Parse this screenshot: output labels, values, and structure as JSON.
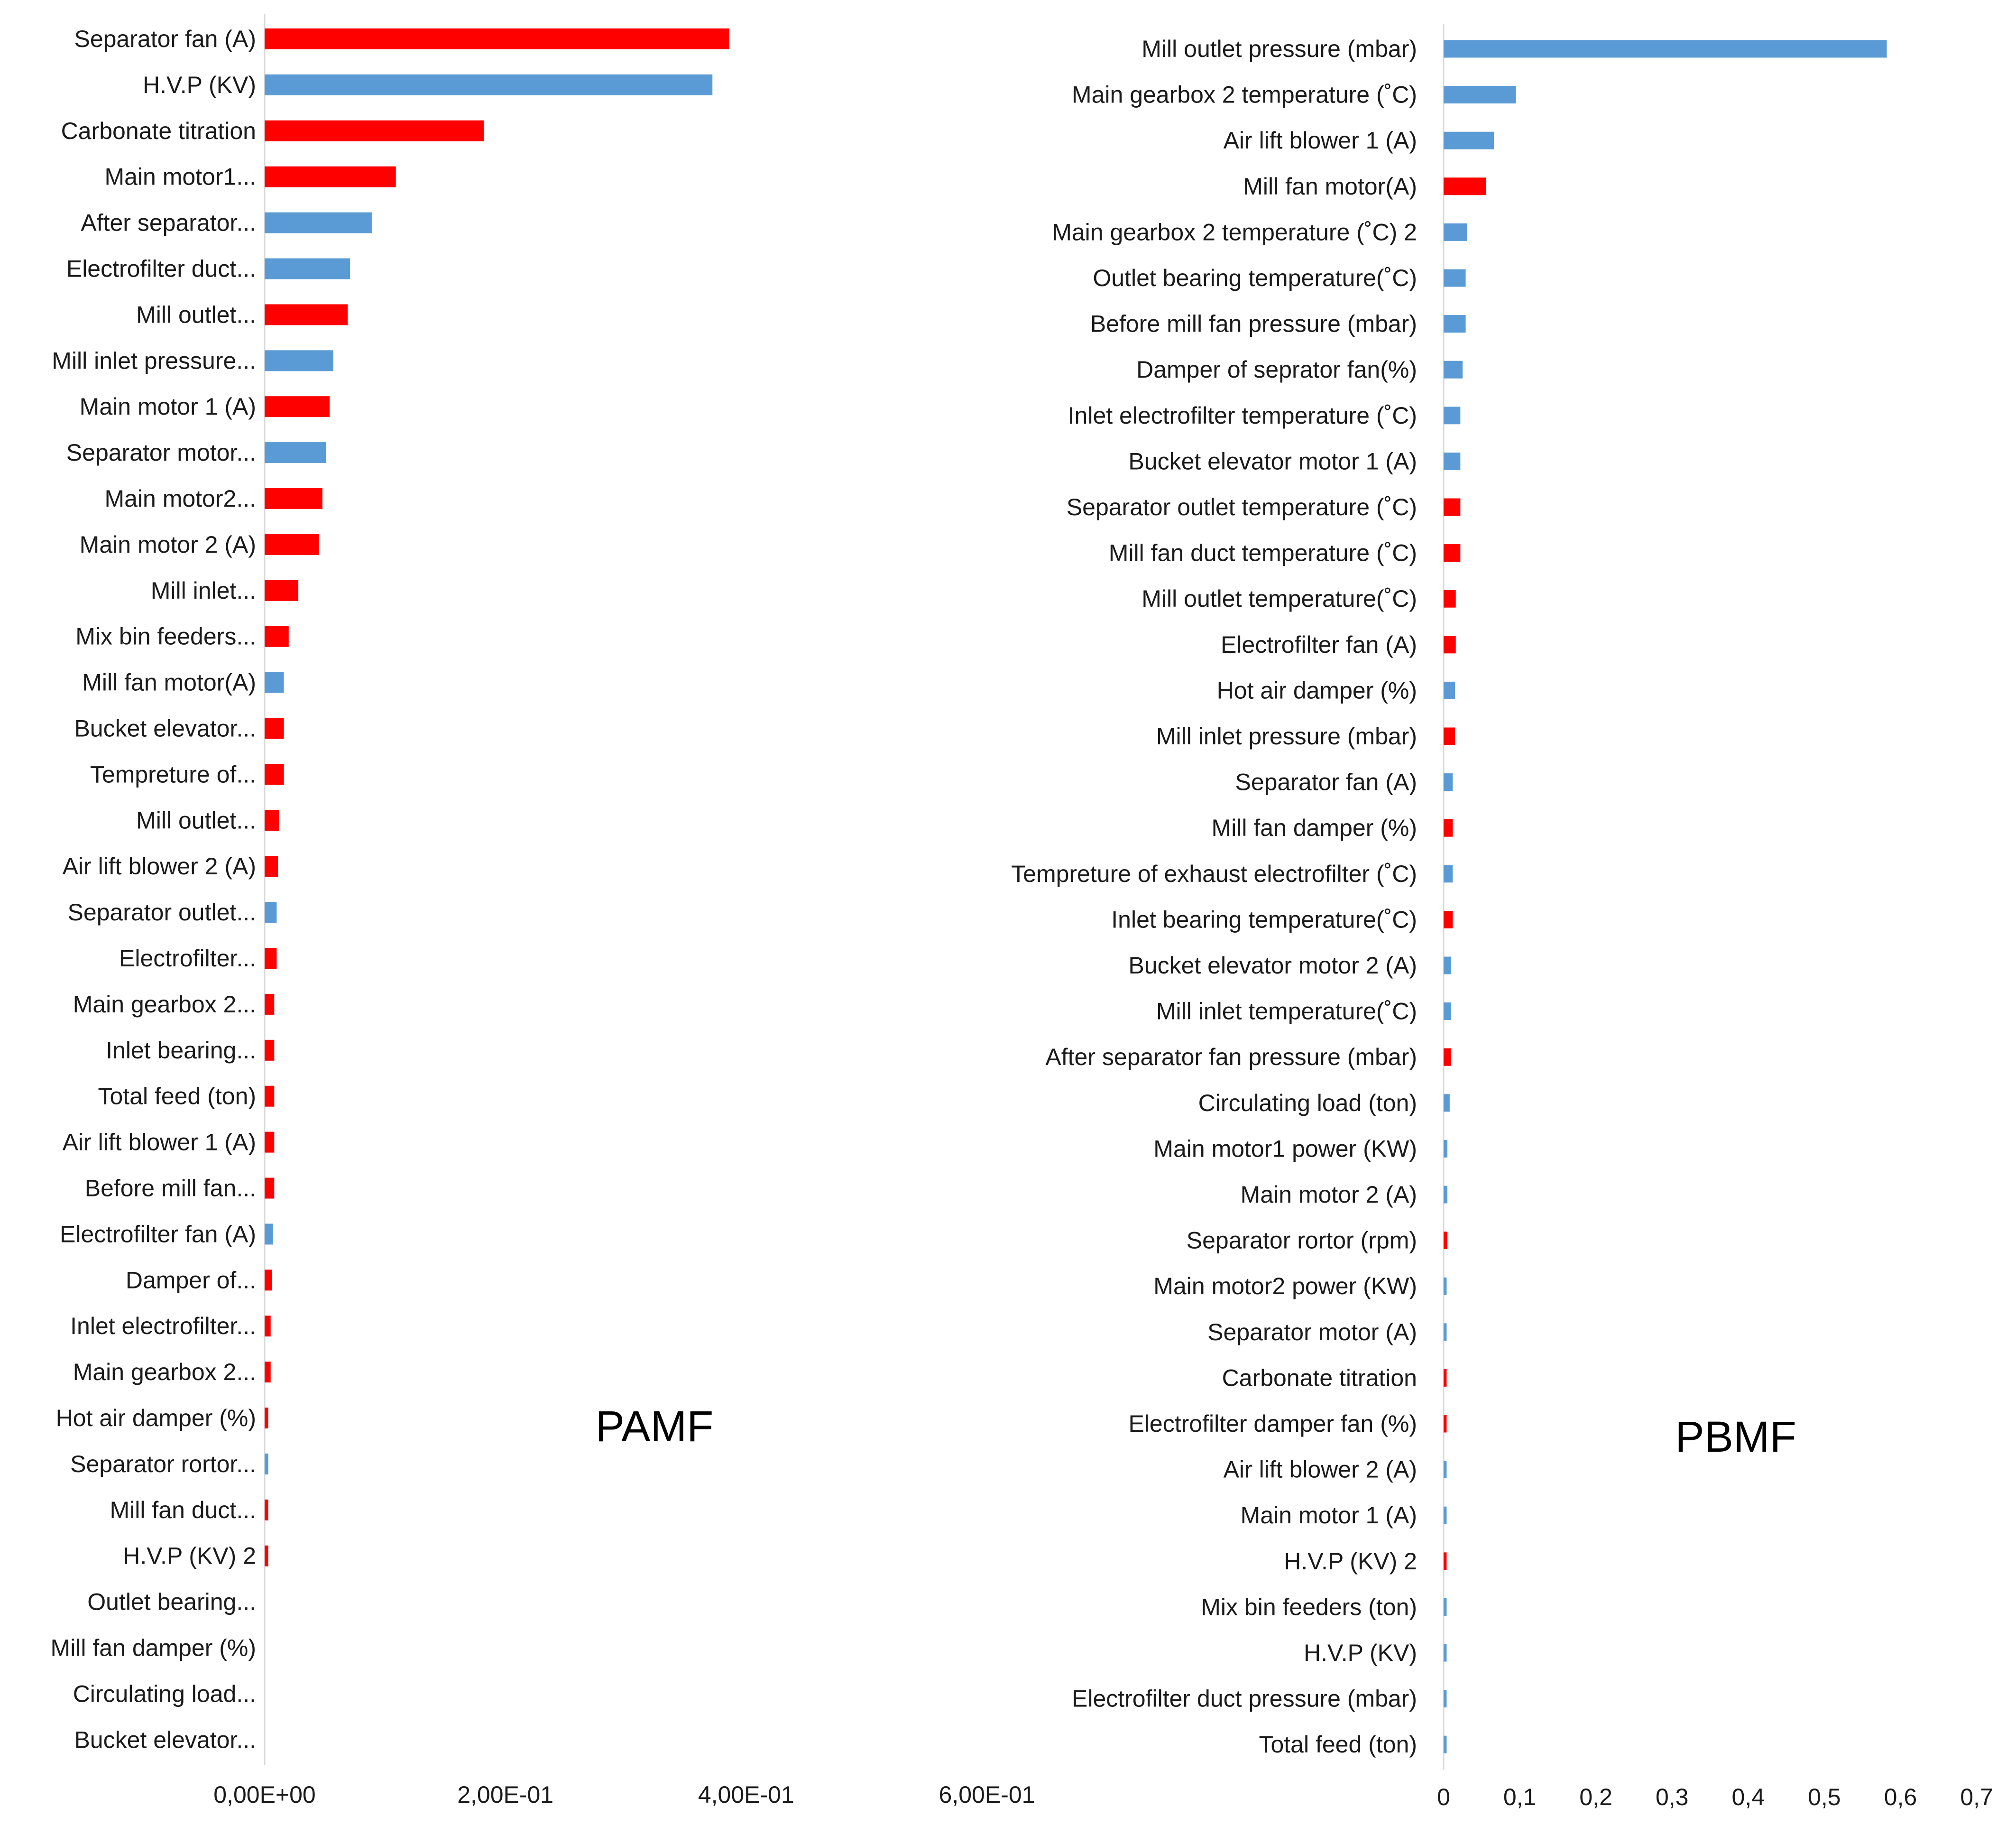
{
  "colors": {
    "red": "#FF0000",
    "blue": "#5B9BD5",
    "axis": "#D9D9D9"
  },
  "chart_data": [
    {
      "type": "bar",
      "orientation": "horizontal",
      "title": "PAMF",
      "xlim": [
        0,
        0.6
      ],
      "xticks": [
        0,
        0.2,
        0.4,
        0.6
      ],
      "xtick_labels": [
        "0,00E+00",
        "2,00E-01",
        "4,00E-01",
        "6,00E-01"
      ],
      "categories": [
        "Separator fan  (A)",
        "H.V.P (KV)",
        "Carbonate titration",
        "Main motor1...",
        "After separator...",
        "Electrofilter duct...",
        "Mill outlet...",
        "Mill inlet pressure...",
        "Main motor 1 (A)",
        "Separator motor...",
        "Main  motor2...",
        "Main motor 2 (A)",
        "Mill inlet...",
        "Mix bin feeders...",
        "Mill fan motor(A)",
        "Bucket elevator...",
        "Tempreture of...",
        "Mill outlet...",
        "Air lift blower 2 (A)",
        "Separator outlet...",
        "Electrofilter...",
        "Main gearbox 2...",
        "Inlet bearing...",
        "Total feed (ton)",
        "Air lift blower 1 (A)",
        "Before mill fan...",
        "Electrofilter fan (A)",
        "Damper of...",
        "Inlet electrofilter...",
        "Main gearbox 2...",
        "Hot air damper (%)",
        "Separator rortor...",
        "Mill fan duct...",
        "H.V.P (KV) 2",
        "Outlet bearing...",
        "Mill fan damper (%)",
        "Circulating load...",
        "Bucket elevator..."
      ],
      "values": [
        0.386,
        0.372,
        0.182,
        0.109,
        0.089,
        0.071,
        0.069,
        0.057,
        0.054,
        0.051,
        0.048,
        0.045,
        0.028,
        0.02,
        0.016,
        0.016,
        0.016,
        0.012,
        0.011,
        0.01,
        0.01,
        0.008,
        0.008,
        0.008,
        0.008,
        0.008,
        0.007,
        0.006,
        0.005,
        0.005,
        0.003,
        0.003,
        0.003,
        0.003,
        0.0,
        0.0,
        0.0,
        0.0
      ],
      "bar_colors": [
        "red",
        "blue",
        "red",
        "red",
        "blue",
        "blue",
        "red",
        "blue",
        "red",
        "blue",
        "red",
        "red",
        "red",
        "red",
        "blue",
        "red",
        "red",
        "red",
        "red",
        "blue",
        "red",
        "red",
        "red",
        "red",
        "red",
        "red",
        "blue",
        "red",
        "red",
        "red",
        "red",
        "blue",
        "red",
        "red",
        "red",
        "red",
        "red",
        "red"
      ]
    },
    {
      "type": "bar",
      "orientation": "horizontal",
      "title": "PBMF",
      "xlim": [
        0,
        0.7
      ],
      "xticks": [
        0,
        0.1,
        0.2,
        0.3,
        0.4,
        0.5,
        0.6,
        0.7
      ],
      "xtick_labels": [
        "0",
        "0,1",
        "0,2",
        "0,3",
        "0,4",
        "0,5",
        "0,6",
        "0,7"
      ],
      "categories": [
        "Mill outlet pressure (mbar)",
        "Main gearbox 2 temperature (˚C)",
        "Air lift blower 1 (A)",
        "Mill fan motor(A)",
        "Main gearbox 2 temperature (˚C) 2",
        "Outlet bearing temperature(˚C)",
        "Before mill fan pressure (mbar)",
        "Damper of seprator fan(%)",
        "Inlet electrofilter temperature  (˚C)",
        "Bucket elevator motor 1 (A)",
        "Separator outlet  temperature (˚C)",
        "Mill fan duct temperature (˚C)",
        "Mill outlet temperature(˚C)",
        "Electrofilter fan (A)",
        "Hot air damper (%)",
        "Mill inlet pressure (mbar)",
        "Separator fan  (A)",
        "Mill fan damper (%)",
        "Tempreture of exhaust electrofilter (˚C)",
        "Inlet bearing temperature(˚C)",
        "Bucket elevator motor 2 (A)",
        "Mill inlet temperature(˚C)",
        "After separator fan pressure (mbar)",
        "Circulating load (ton)",
        "Main motor1 power (KW)",
        "Main motor 2 (A)",
        "Separator rortor (rpm)",
        "Main  motor2 power (KW)",
        "Separator motor (A)",
        "Carbonate titration",
        "Electrofilter damper fan (%)",
        "Air lift blower 2 (A)",
        "Main motor 1 (A)",
        "H.V.P (KV) 2",
        "Mix bin feeders (ton)",
        "H.V.P (KV)",
        "Electrofilter duct pressure (mbar)",
        "Total feed (ton)"
      ],
      "values": [
        0.582,
        0.095,
        0.066,
        0.056,
        0.031,
        0.029,
        0.029,
        0.025,
        0.022,
        0.022,
        0.022,
        0.022,
        0.016,
        0.016,
        0.015,
        0.015,
        0.012,
        0.012,
        0.012,
        0.012,
        0.01,
        0.01,
        0.01,
        0.008,
        0.005,
        0.005,
        0.005,
        0.004,
        0.004,
        0.004,
        0.004,
        0.004,
        0.004,
        0.004,
        0.004,
        0.004,
        0.004,
        0.004
      ],
      "bar_colors": [
        "blue",
        "blue",
        "blue",
        "red",
        "blue",
        "blue",
        "blue",
        "blue",
        "blue",
        "blue",
        "red",
        "red",
        "red",
        "red",
        "blue",
        "red",
        "blue",
        "red",
        "blue",
        "red",
        "blue",
        "blue",
        "red",
        "blue",
        "blue",
        "blue",
        "red",
        "blue",
        "blue",
        "red",
        "red",
        "blue",
        "blue",
        "red",
        "blue",
        "blue",
        "blue",
        "blue"
      ]
    }
  ]
}
